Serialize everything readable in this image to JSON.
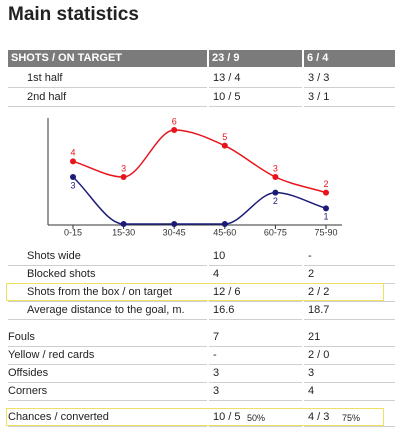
{
  "title": "Main statistics",
  "header": [
    "SHOTS / ON TARGET",
    "23 / 9",
    "6 / 4"
  ],
  "halves": [
    {
      "label": "1st half",
      "values": [
        "13 / 4",
        "3 / 3"
      ]
    },
    {
      "label": "2nd half",
      "values": [
        "10 / 5",
        "3 / 1"
      ]
    }
  ],
  "chart_data": {
    "type": "line",
    "categories": [
      "0-15",
      "15-30",
      "30-45",
      "45-60",
      "60-75",
      "75-90"
    ],
    "ylim": [
      0,
      6
    ],
    "series": [
      {
        "color": "#e8141c",
        "values": [
          4,
          3,
          6,
          5,
          3,
          2
        ]
      },
      {
        "color": "#1c1c78",
        "values": [
          3,
          0,
          0,
          0,
          2,
          1
        ],
        "value_labels": [
          "3",
          null,
          null,
          null,
          "2",
          "1"
        ]
      }
    ]
  },
  "sections": [
    [
      {
        "label": "Shots wide",
        "values": [
          "10",
          "-"
        ]
      },
      {
        "label": "Blocked shots",
        "values": [
          "4",
          "2"
        ]
      },
      {
        "label": "Shots from the box / on target",
        "values": [
          "12 / 6",
          "2 / 2"
        ],
        "highlight": true
      },
      {
        "label": "Average distance to the goal, m.",
        "values": [
          "16.6",
          "18.7"
        ]
      }
    ],
    [
      {
        "label": "Fouls",
        "values": [
          "7",
          "21"
        ]
      },
      {
        "label": "Yellow / red cards",
        "values": [
          "-",
          "2 / 0"
        ]
      },
      {
        "label": "Offsides",
        "values": [
          "3",
          "3"
        ]
      },
      {
        "label": "Corners",
        "values": [
          "3",
          "4"
        ]
      }
    ],
    [
      {
        "label": "Chances / converted",
        "values": [
          [
            "10 / 5",
            "50%"
          ],
          [
            "4 / 3",
            "75%"
          ]
        ],
        "highlight": true
      }
    ]
  ]
}
